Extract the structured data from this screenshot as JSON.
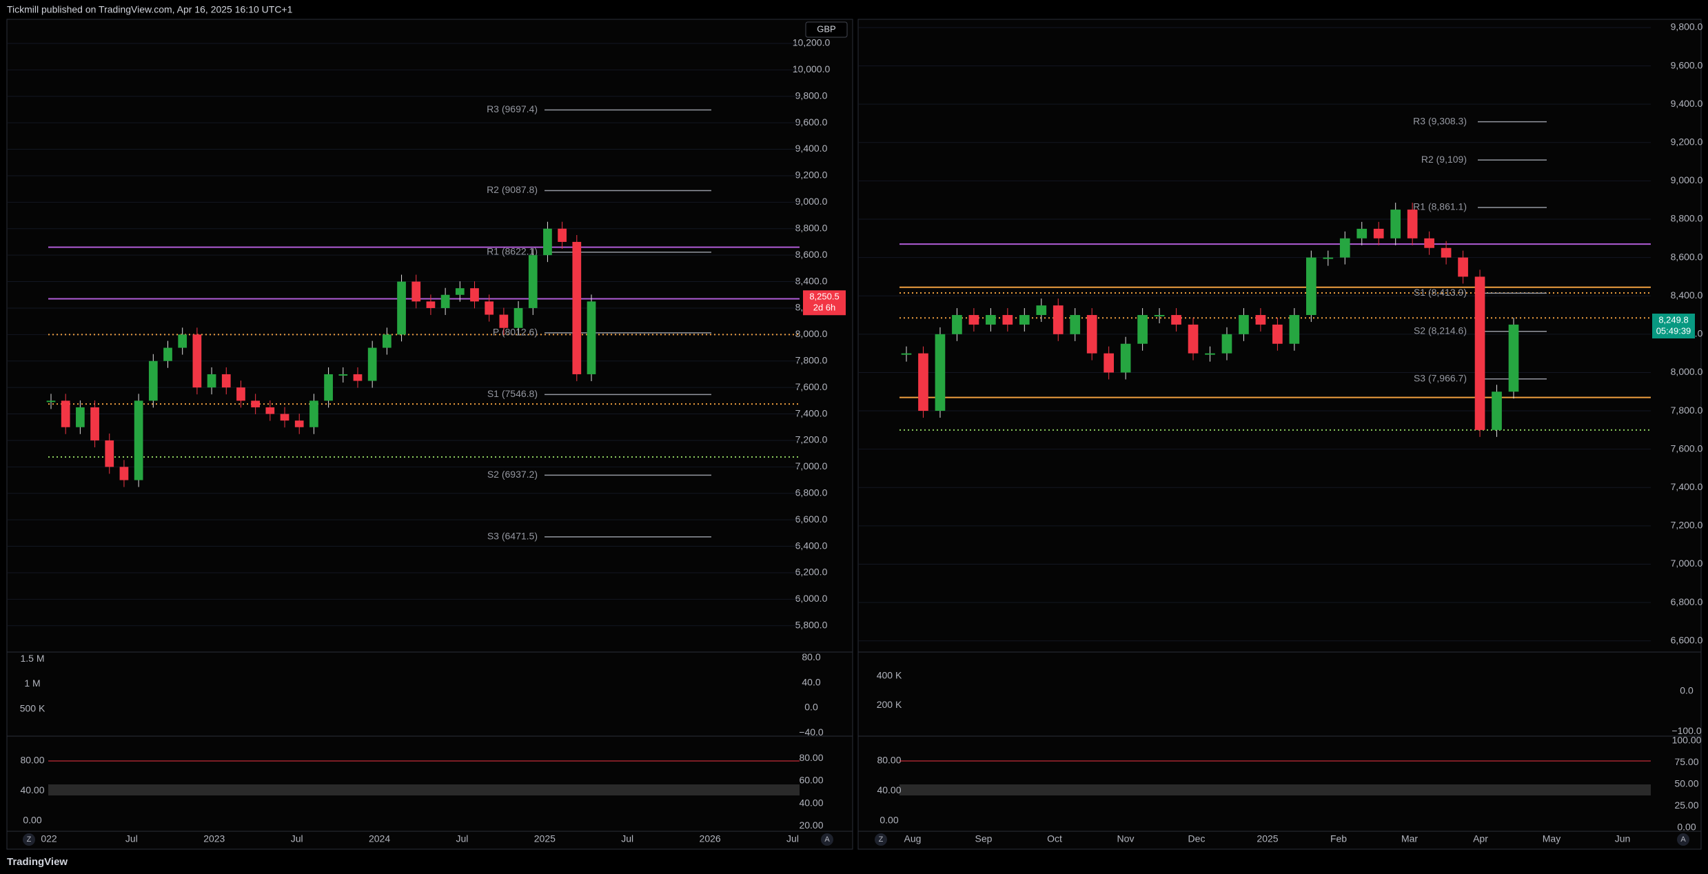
{
  "header": {
    "title": "Tickmill published on TradingView.com, Apr 16, 2025 16:10 UTC+1"
  },
  "footer": {
    "brand": "TradingView"
  },
  "currency_button": "GBP",
  "panels": [
    {
      "type": "candlestick",
      "close_estimates": [
        7500,
        7300,
        7450,
        7200,
        7000,
        6900,
        7500,
        7800,
        7900,
        8000,
        7600,
        7700,
        7600,
        7500,
        7450,
        7400,
        7350,
        7300,
        7500,
        7700,
        7700,
        7650,
        7900,
        8000,
        8400,
        8250,
        8200,
        8300,
        8350,
        8250,
        8150,
        8050,
        8200,
        8600,
        8800,
        8700,
        7700,
        8250
      ],
      "price_axis": {
        "lim": [
          5606,
          10382
        ],
        "ticks": [
          {
            "value": 10200,
            "label": "10,200.0"
          },
          {
            "value": 10000,
            "label": "10,000.0"
          },
          {
            "value": 9800,
            "label": "9,800.0"
          },
          {
            "value": 9600,
            "label": "9,600.0"
          },
          {
            "value": 9400,
            "label": "9,400.0"
          },
          {
            "value": 9200,
            "label": "9,200.0"
          },
          {
            "value": 9000,
            "label": "9,000.0"
          },
          {
            "value": 8800,
            "label": "8,800.0"
          },
          {
            "value": 8600,
            "label": "8,600.0"
          },
          {
            "value": 8400,
            "label": "8,400.0"
          },
          {
            "value": 8200,
            "label": "8,200.0"
          },
          {
            "value": 8000,
            "label": "8,000.0"
          },
          {
            "value": 7800,
            "label": "7,800.0"
          },
          {
            "value": 7600,
            "label": "7,600.0"
          },
          {
            "value": 7400,
            "label": "7,400.0"
          },
          {
            "value": 7200,
            "label": "7,200.0"
          },
          {
            "value": 7000,
            "label": "7,000.0"
          },
          {
            "value": 6800,
            "label": "6,800.0"
          },
          {
            "value": 6600,
            "label": "6,600.0"
          },
          {
            "value": 6400,
            "label": "6,400.0"
          },
          {
            "value": 6200,
            "label": "6,200.0"
          },
          {
            "value": 6000,
            "label": "6,000.0"
          },
          {
            "value": 5800,
            "label": "5,800.0"
          }
        ]
      },
      "pivots": [
        {
          "level": 9697.4,
          "label": "R3 (9697.4)"
        },
        {
          "level": 9087.8,
          "label": "R2 (9087.8)"
        },
        {
          "level": 8622.1,
          "label": "R1 (8622.1)"
        },
        {
          "level": 8012.6,
          "label": "P (8012.6)"
        },
        {
          "level": 7546.8,
          "label": "S1 (7546.8)"
        },
        {
          "level": 6937.2,
          "label": "S2 (6937.2)"
        },
        {
          "level": 6471.5,
          "label": "S3 (6471.5)"
        }
      ],
      "levels": [
        {
          "value": 8660,
          "color": "#b05cd6",
          "style": "solid"
        },
        {
          "value": 8270,
          "color": "#b05cd6",
          "style": "solid"
        },
        {
          "value": 8000,
          "color": "#f0a040",
          "style": "dotted"
        },
        {
          "value": 7475,
          "color": "#f0a040",
          "style": "dotted"
        },
        {
          "value": 7075,
          "color": "#8fd060",
          "style": "dotted"
        }
      ],
      "price_tag": {
        "value": 8250.5,
        "label": "8,250.5",
        "countdown": "2d 6h",
        "color": "#f23645"
      },
      "volume_axis": {
        "lim": [
          -27500,
          1611000
        ],
        "ticks": [
          {
            "value": 1500000,
            "label": "1.5 M"
          },
          {
            "value": 1000000,
            "label": "1 M"
          },
          {
            "value": 500000,
            "label": "500 K"
          }
        ]
      },
      "oscillator_axis": {
        "lim": [
          -44.1,
          87
        ],
        "ticks": [
          {
            "value": 80,
            "label": "80.0"
          },
          {
            "value": 40,
            "label": "40.0"
          },
          {
            "value": 0,
            "label": "0.0"
          },
          {
            "value": -40,
            "label": "−40.0"
          }
        ]
      },
      "stoch_axis": {
        "lim": [
          -12,
          111.3
        ],
        "ticks": [
          {
            "value": 80,
            "label": "80.00"
          },
          {
            "value": 40,
            "label": "40.00"
          },
          {
            "value": 0,
            "label": "0.00"
          }
        ]
      },
      "stoch_right_axis": {
        "lim": [
          16.5,
          98.5
        ],
        "ticks": [
          {
            "value": 80,
            "label": "80.00"
          },
          {
            "value": 60,
            "label": "60.00"
          },
          {
            "value": 40,
            "label": "40.00"
          },
          {
            "value": 20,
            "label": "20.00"
          }
        ]
      },
      "time_axis": [
        "022",
        "Jul",
        "2023",
        "Jul",
        "2024",
        "Jul",
        "2025",
        "Jul",
        "2026",
        "Jul"
      ],
      "controls": [
        "Z",
        "A"
      ]
    },
    {
      "type": "candlestick",
      "close_estimates": [
        8100,
        7800,
        8200,
        8300,
        8250,
        8300,
        8250,
        8300,
        8350,
        8200,
        8300,
        8100,
        8000,
        8150,
        8300,
        8300,
        8250,
        8100,
        8100,
        8200,
        8300,
        8250,
        8150,
        8300,
        8600,
        8600,
        8700,
        8750,
        8700,
        8850,
        8700,
        8650,
        8600,
        8500,
        7700,
        7900,
        8250
      ],
      "price_axis": {
        "lim": [
          6545,
          9843
        ],
        "ticks": [
          {
            "value": 9800,
            "label": "9,800.0"
          },
          {
            "value": 9600,
            "label": "9,600.0"
          },
          {
            "value": 9400,
            "label": "9,400.0"
          },
          {
            "value": 9200,
            "label": "9,200.0"
          },
          {
            "value": 9000,
            "label": "9,000.0"
          },
          {
            "value": 8800,
            "label": "8,800.0"
          },
          {
            "value": 8600,
            "label": "8,600.0"
          },
          {
            "value": 8400,
            "label": "8,400.0"
          },
          {
            "value": 8200,
            "label": "8,200.0"
          },
          {
            "value": 8000,
            "label": "8,000.0"
          },
          {
            "value": 7800,
            "label": "7,800.0"
          },
          {
            "value": 7600,
            "label": "7,600.0"
          },
          {
            "value": 7400,
            "label": "7,400.0"
          },
          {
            "value": 7200,
            "label": "7,200.0"
          },
          {
            "value": 7000,
            "label": "7,000.0"
          },
          {
            "value": 6800,
            "label": "6,800.0"
          },
          {
            "value": 6600,
            "label": "6,600.0"
          }
        ]
      },
      "pivots": [
        {
          "level": 9308.3,
          "label": "R3 (9,308.3)"
        },
        {
          "level": 9109,
          "label": "R2 (9,109)"
        },
        {
          "level": 8861.1,
          "label": "R1 (8,861.1)"
        },
        {
          "level": 8413.9,
          "label": "S1 (8,413.9)"
        },
        {
          "level": 8214.6,
          "label": "S2 (8,214.6)"
        },
        {
          "level": 7966.7,
          "label": "S3 (7,966.7)"
        }
      ],
      "levels": [
        {
          "value": 8670,
          "color": "#b05cd6",
          "style": "solid"
        },
        {
          "value": 8445,
          "color": "#f0a040",
          "style": "solid"
        },
        {
          "value": 8415,
          "color": "#f0a040",
          "style": "dotted"
        },
        {
          "value": 8285,
          "color": "#f0a040",
          "style": "dotted"
        },
        {
          "value": 7870,
          "color": "#f0a040",
          "style": "solid"
        },
        {
          "value": 7700,
          "color": "#8fd060",
          "style": "dotted"
        }
      ],
      "price_tag": {
        "value": 8249.8,
        "label": "8,249.8",
        "countdown": "05:49:39",
        "color": "#089981"
      },
      "volume_axis": {
        "lim": [
          -4700,
          552700
        ],
        "ticks": [
          {
            "value": 400000,
            "label": "400 K"
          },
          {
            "value": 200000,
            "label": "200 K"
          }
        ]
      },
      "oscillator_axis": {
        "lim": [
          -109.4,
          94
        ],
        "ticks": [
          {
            "value": 0,
            "label": "0.0"
          },
          {
            "value": -100,
            "label": "−100.0"
          }
        ]
      },
      "stoch_axis": {
        "lim": [
          -12,
          111.3
        ],
        "ticks": [
          {
            "value": 80,
            "label": "80.00"
          },
          {
            "value": 40,
            "label": "40.00"
          },
          {
            "value": 0,
            "label": "0.00"
          }
        ]
      },
      "stoch_right_axis": {
        "lim": [
          -2.4,
          103.6
        ],
        "ticks": [
          {
            "value": 100,
            "label": "100.00"
          },
          {
            "value": 75,
            "label": "75.00"
          },
          {
            "value": 50,
            "label": "50.00"
          },
          {
            "value": 25,
            "label": "25.00"
          },
          {
            "value": 0,
            "label": "0.00"
          }
        ]
      },
      "time_axis": [
        "Aug",
        "Sep",
        "Oct",
        "Nov",
        "Dec",
        "2025",
        "Feb",
        "Mar",
        "Apr",
        "May",
        "Jun"
      ],
      "controls": [
        "Z",
        "A"
      ]
    }
  ]
}
